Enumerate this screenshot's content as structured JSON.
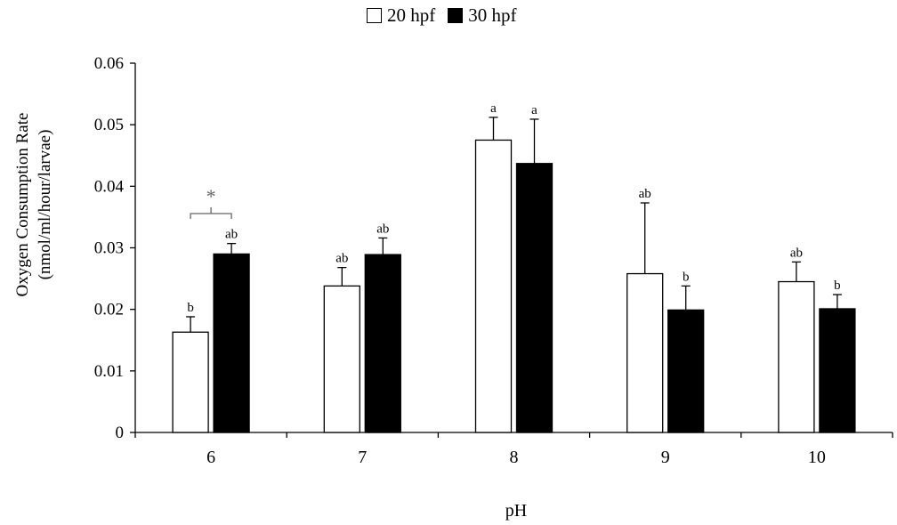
{
  "chart_data": {
    "type": "bar",
    "categories": [
      "6",
      "7",
      "8",
      "9",
      "10"
    ],
    "series": [
      {
        "name": "20 hpf",
        "fill": "#ffffff",
        "values": [
          0.0163,
          0.0238,
          0.0475,
          0.0258,
          0.0245
        ],
        "errors": [
          0.0025,
          0.003,
          0.0037,
          0.0115,
          0.0032
        ],
        "letters": [
          "b",
          "ab",
          "a",
          "ab",
          "ab"
        ]
      },
      {
        "name": "30 hpf",
        "fill": "#000000",
        "values": [
          0.029,
          0.0289,
          0.0437,
          0.0199,
          0.0201
        ],
        "errors": [
          0.0017,
          0.0027,
          0.0072,
          0.0039,
          0.0023
        ],
        "letters": [
          "ab",
          "ab",
          "a",
          "b",
          "b"
        ]
      }
    ],
    "ylim": [
      0,
      0.06
    ],
    "yticks": [
      "0",
      "0.01",
      "0.02",
      "0.03",
      "0.04",
      "0.05",
      "0.06"
    ],
    "xlabel": "pH",
    "ylabel_line1": "Oxygen Consumption Rate",
    "ylabel_line2": "(nmol/ml/hour/larvae)",
    "legend_position": "top-center",
    "grid": false,
    "annotations": [
      {
        "category": "6",
        "text": "*"
      }
    ]
  }
}
